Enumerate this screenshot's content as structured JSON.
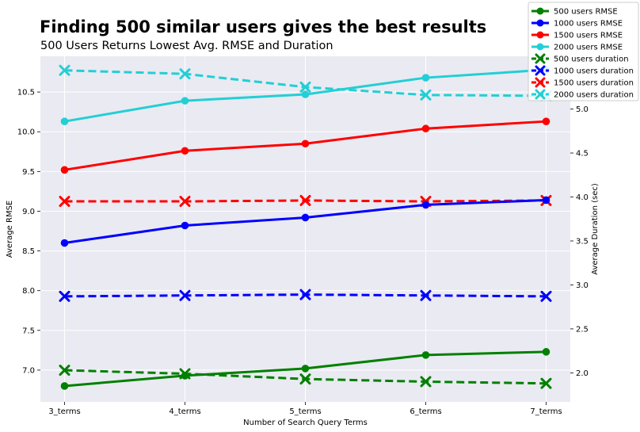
{
  "chart_data": {
    "type": "line",
    "title": "Finding 500 similar users gives the best results",
    "subtitle": "500 Users Returns Lowest Avg. RMSE and Duration",
    "xlabel": "Number of Search Query Terms",
    "ylabel_left": "Average RMSE",
    "ylabel_right": "Average Duration (sec)",
    "categories": [
      "3_terms",
      "4_terms",
      "5_terms",
      "6_terms",
      "7_terms"
    ],
    "ylim_left": [
      6.6,
      10.95
    ],
    "yticks_left": [
      "7.0",
      "7.5",
      "8.0",
      "8.5",
      "9.0",
      "9.5",
      "10.0",
      "10.5"
    ],
    "ylim_right": [
      1.67,
      5.6
    ],
    "yticks_right": [
      "2.0",
      "2.5",
      "3.0",
      "3.5",
      "4.0",
      "4.5",
      "5.0"
    ],
    "grid": true,
    "legend_position": "top-right",
    "rmse_series": [
      {
        "name": "500 users RMSE",
        "color": "#008000",
        "values": [
          6.8,
          6.93,
          7.02,
          7.19,
          7.23
        ]
      },
      {
        "name": "1000 users RMSE",
        "color": "#0000ff",
        "values": [
          8.6,
          8.82,
          8.92,
          9.08,
          9.14
        ]
      },
      {
        "name": "1500 users RMSE",
        "color": "#ff0000",
        "values": [
          9.52,
          9.76,
          9.85,
          10.04,
          10.13
        ]
      },
      {
        "name": "2000 users RMSE",
        "color": "#22cfd5",
        "values": [
          10.13,
          10.39,
          10.47,
          10.68,
          10.78
        ]
      }
    ],
    "duration_series": [
      {
        "name": "500 users duration",
        "color": "#008000",
        "values": [
          2.03,
          1.99,
          1.93,
          1.9,
          1.88
        ]
      },
      {
        "name": "1000 users duration",
        "color": "#0000ff",
        "values": [
          2.87,
          2.88,
          2.89,
          2.88,
          2.87
        ]
      },
      {
        "name": "1500 users duration",
        "color": "#ff0000",
        "values": [
          3.95,
          3.95,
          3.96,
          3.95,
          3.96
        ]
      },
      {
        "name": "2000 users duration",
        "color": "#22cfd5",
        "values": [
          5.44,
          5.4,
          5.25,
          5.16,
          5.15
        ]
      }
    ]
  }
}
